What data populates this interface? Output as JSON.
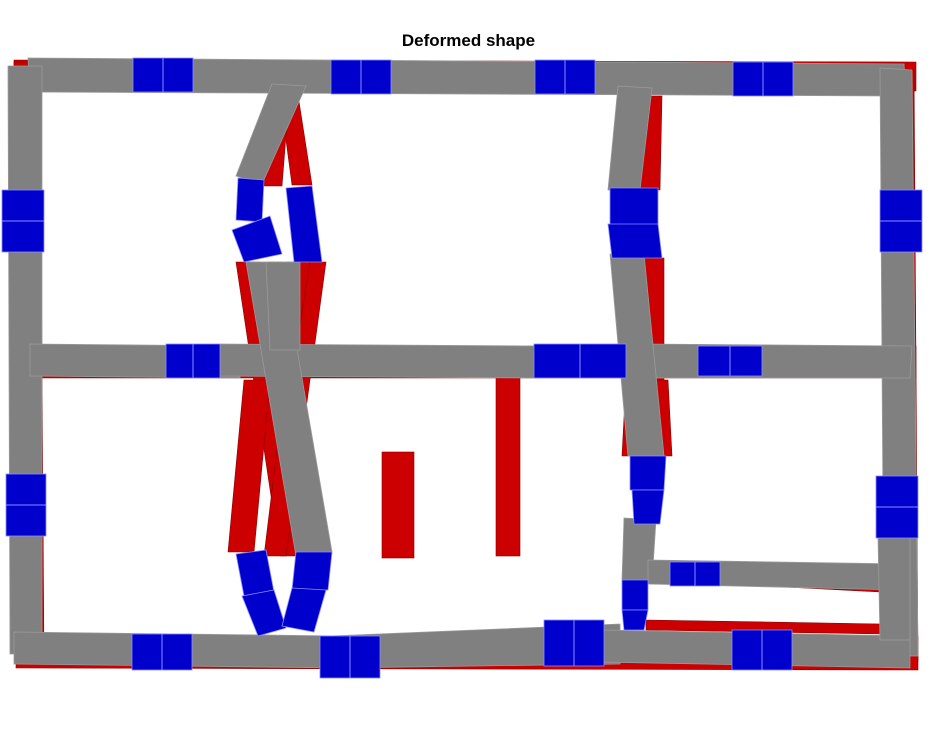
{
  "title": "Deformed shape",
  "colors": {
    "background": "#ffffff",
    "frame_element": "#808080",
    "reference_shape": "#cc0000",
    "spandrel_element": "#0000cc",
    "element_edge": "#9a9a9a"
  },
  "legend": []
}
